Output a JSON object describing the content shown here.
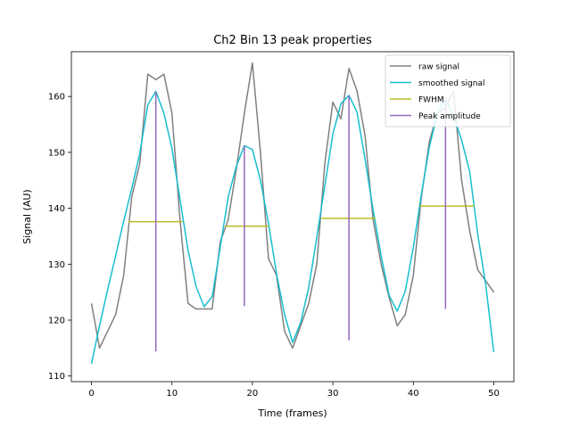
{
  "chart_data": {
    "type": "line",
    "title": "Ch2 Bin 13 peak properties",
    "xlabel": "Time (frames)",
    "ylabel": "Signal (AU)",
    "xlim": [
      -2.5,
      52.5
    ],
    "ylim": [
      109,
      168
    ],
    "xticks": [
      0,
      10,
      20,
      30,
      40,
      50
    ],
    "yticks": [
      110,
      120,
      130,
      140,
      150,
      160
    ],
    "legend_position": "upper right",
    "series": [
      {
        "name": "raw signal",
        "kind": "line",
        "color": "#808080",
        "x": [
          0,
          1,
          2,
          3,
          4,
          5,
          6,
          7,
          8,
          9,
          10,
          11,
          12,
          13,
          14,
          15,
          16,
          17,
          18,
          19,
          20,
          21,
          22,
          23,
          24,
          25,
          26,
          27,
          28,
          29,
          30,
          31,
          32,
          33,
          34,
          35,
          36,
          37,
          38,
          39,
          40,
          41,
          42,
          43,
          44,
          45,
          46,
          47,
          48,
          49,
          50
        ],
        "y": [
          123,
          115,
          118,
          121,
          128,
          142,
          148,
          164,
          163,
          164,
          157,
          138,
          123,
          122,
          122,
          122,
          134,
          138,
          147,
          157,
          166,
          150,
          131,
          128,
          118,
          115,
          119,
          123,
          130,
          148,
          159,
          156,
          165,
          161,
          153,
          138,
          130,
          124,
          119,
          121,
          128,
          142,
          152,
          157,
          158,
          161,
          145,
          136,
          129,
          127,
          125
        ]
      },
      {
        "name": "smoothed signal",
        "kind": "line",
        "color": "#17becf",
        "x": [
          0,
          1,
          2,
          3,
          4,
          5,
          6,
          7,
          8,
          9,
          10,
          11,
          12,
          13,
          14,
          15,
          16,
          17,
          18,
          19,
          20,
          21,
          22,
          23,
          24,
          25,
          26,
          27,
          28,
          29,
          30,
          31,
          32,
          33,
          34,
          35,
          36,
          37,
          38,
          39,
          40,
          41,
          42,
          43,
          44,
          45,
          46,
          47,
          48,
          49,
          50
        ],
        "y": [
          112.2,
          119,
          125.4,
          131.5,
          137.7,
          143.5,
          149.8,
          158.5,
          160.9,
          157,
          150.7,
          141.6,
          132.5,
          126,
          122.4,
          124.2,
          133,
          142.1,
          147.5,
          151.2,
          150.5,
          145,
          137.3,
          128.3,
          121,
          116,
          119.6,
          125.8,
          134.8,
          144,
          153.3,
          158.7,
          160.2,
          157.2,
          148.8,
          139.7,
          131.5,
          124.4,
          121.6,
          125.2,
          133,
          142.5,
          151,
          157,
          159.6,
          156.5,
          152.2,
          146.6,
          135.4,
          126.3,
          114.3
        ]
      },
      {
        "name": "FWHM",
        "kind": "hlines",
        "color": "#bcbd22",
        "segments": [
          {
            "y": 137.6,
            "x0": 4.6,
            "x1": 11.3
          },
          {
            "y": 136.8,
            "x0": 16.6,
            "x1": 22
          },
          {
            "y": 138.2,
            "x0": 28.6,
            "x1": 35.3
          },
          {
            "y": 140.4,
            "x0": 40.8,
            "x1": 47.6
          }
        ]
      },
      {
        "name": "Peak amplitude",
        "kind": "vlines",
        "color": "#9467bd",
        "segments": [
          {
            "x": 8,
            "y0": 114.4,
            "y1": 160.9
          },
          {
            "x": 19,
            "y0": 122.5,
            "y1": 151.2
          },
          {
            "x": 32,
            "y0": 116.4,
            "y1": 160.2
          },
          {
            "x": 44,
            "y0": 122,
            "y1": 159.6
          }
        ]
      }
    ]
  }
}
